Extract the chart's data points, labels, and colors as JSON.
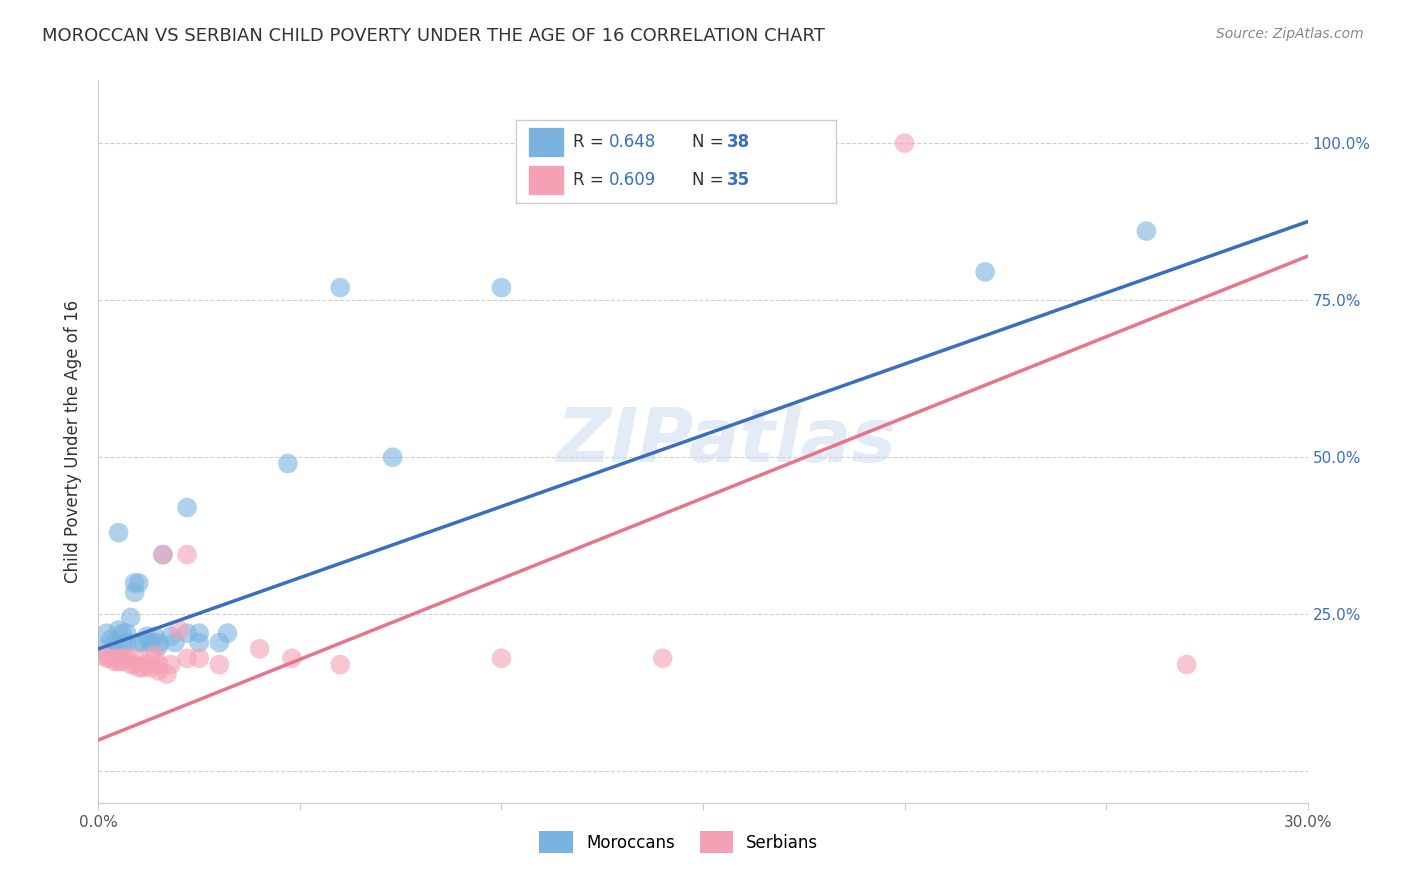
{
  "title": "MOROCCAN VS SERBIAN CHILD POVERTY UNDER THE AGE OF 16 CORRELATION CHART",
  "source": "Source: ZipAtlas.com",
  "ylabel": "Child Poverty Under the Age of 16",
  "xlim": [
    0.0,
    0.3
  ],
  "ylim": [
    -0.05,
    1.1
  ],
  "yticks": [
    0.0,
    0.25,
    0.5,
    0.75,
    1.0
  ],
  "ytick_labels": [
    "",
    "25.0%",
    "50.0%",
    "75.0%",
    "100.0%"
  ],
  "xticks": [
    0.0,
    0.05,
    0.1,
    0.15,
    0.2,
    0.25,
    0.3
  ],
  "xtick_labels": [
    "0.0%",
    "",
    "",
    "",
    "",
    "",
    "30.0%"
  ],
  "moroccan_color": "#7ab3e0",
  "serbian_color": "#f4a0b5",
  "moroccan_line_color": "#3a6fbd",
  "serbian_line_color": "#e8748a",
  "moroccan_R": "0.648",
  "moroccan_N": "38",
  "serbian_R": "0.609",
  "serbian_N": "35",
  "background_color": "#ffffff",
  "grid_color": "#d0d0d0",
  "watermark": "ZIPatlas",
  "moroccan_line": {
    "x0": 0.0,
    "y0": 0.195,
    "x1": 0.3,
    "y1": 0.875
  },
  "serbian_line": {
    "x0": 0.0,
    "y0": 0.05,
    "x1": 0.3,
    "y1": 0.82
  },
  "moroccan_scatter": [
    [
      0.001,
      0.195
    ],
    [
      0.002,
      0.22
    ],
    [
      0.003,
      0.21
    ],
    [
      0.004,
      0.205
    ],
    [
      0.005,
      0.2
    ],
    [
      0.005,
      0.225
    ],
    [
      0.006,
      0.22
    ],
    [
      0.006,
      0.2
    ],
    [
      0.007,
      0.205
    ],
    [
      0.007,
      0.22
    ],
    [
      0.008,
      0.245
    ],
    [
      0.009,
      0.285
    ],
    [
      0.009,
      0.3
    ],
    [
      0.01,
      0.3
    ],
    [
      0.01,
      0.205
    ],
    [
      0.011,
      0.205
    ],
    [
      0.012,
      0.215
    ],
    [
      0.013,
      0.205
    ],
    [
      0.013,
      0.205
    ],
    [
      0.014,
      0.215
    ],
    [
      0.015,
      0.205
    ],
    [
      0.015,
      0.2
    ],
    [
      0.016,
      0.345
    ],
    [
      0.018,
      0.215
    ],
    [
      0.019,
      0.205
    ],
    [
      0.022,
      0.22
    ],
    [
      0.022,
      0.42
    ],
    [
      0.025,
      0.22
    ],
    [
      0.025,
      0.205
    ],
    [
      0.03,
      0.205
    ],
    [
      0.032,
      0.22
    ],
    [
      0.047,
      0.49
    ],
    [
      0.06,
      0.77
    ],
    [
      0.073,
      0.5
    ],
    [
      0.1,
      0.77
    ],
    [
      0.22,
      0.795
    ],
    [
      0.26,
      0.86
    ],
    [
      0.005,
      0.38
    ]
  ],
  "serbian_scatter": [
    [
      0.001,
      0.185
    ],
    [
      0.002,
      0.18
    ],
    [
      0.003,
      0.18
    ],
    [
      0.004,
      0.175
    ],
    [
      0.005,
      0.18
    ],
    [
      0.005,
      0.175
    ],
    [
      0.006,
      0.175
    ],
    [
      0.006,
      0.18
    ],
    [
      0.007,
      0.18
    ],
    [
      0.008,
      0.17
    ],
    [
      0.009,
      0.17
    ],
    [
      0.009,
      0.18
    ],
    [
      0.01,
      0.165
    ],
    [
      0.011,
      0.165
    ],
    [
      0.012,
      0.17
    ],
    [
      0.013,
      0.165
    ],
    [
      0.013,
      0.18
    ],
    [
      0.014,
      0.185
    ],
    [
      0.015,
      0.16
    ],
    [
      0.015,
      0.17
    ],
    [
      0.016,
      0.345
    ],
    [
      0.017,
      0.155
    ],
    [
      0.018,
      0.17
    ],
    [
      0.02,
      0.225
    ],
    [
      0.022,
      0.18
    ],
    [
      0.022,
      0.345
    ],
    [
      0.025,
      0.18
    ],
    [
      0.03,
      0.17
    ],
    [
      0.04,
      0.195
    ],
    [
      0.048,
      0.18
    ],
    [
      0.06,
      0.17
    ],
    [
      0.1,
      0.18
    ],
    [
      0.14,
      0.18
    ],
    [
      0.2,
      1.0
    ],
    [
      0.27,
      0.17
    ]
  ]
}
